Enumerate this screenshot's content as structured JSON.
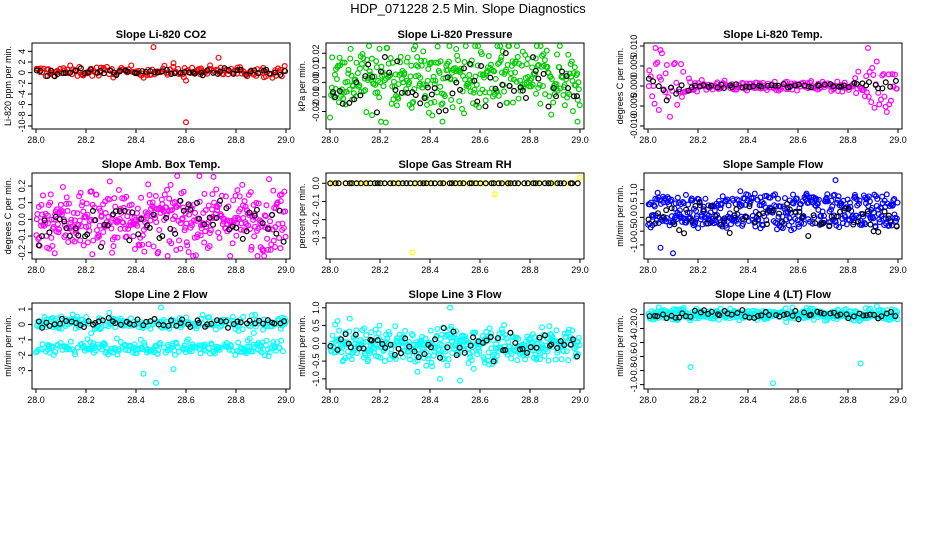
{
  "title": "HDP_071228  2.5 Min. Slope Diagnostics",
  "colors": {
    "black": "#000000",
    "red": "#ff0000",
    "green": "#00cc00",
    "magenta": "#ff00ff",
    "yellow": "#ffff00",
    "blue": "#0000ff",
    "cyan": "#00ffff"
  },
  "chart_data": [
    {
      "type": "scatter",
      "title": "Slope Li-820 CO2",
      "ylabel": "Li-820 ppm per min.",
      "xlim": [
        28.0,
        29.0
      ],
      "xticks": [
        "28.0",
        "28.2",
        "28.4",
        "28.6",
        "28.8",
        "29.0"
      ],
      "ylim": [
        -10,
        5
      ],
      "yticks": [
        "-10",
        "-8",
        "-6",
        "-4",
        "-2",
        "0",
        "2",
        "4"
      ],
      "series": [
        {
          "name": "color points",
          "color": "red",
          "pattern": "band",
          "center": 0.2,
          "spread": 0.5,
          "n": 170,
          "points": [
            [
              28.47,
              4.8
            ],
            [
              28.6,
              -9.3
            ],
            [
              28.55,
              1.8
            ],
            [
              28.73,
              2.8
            ],
            [
              28.6,
              -1.5
            ],
            [
              28.66,
              0.8
            ]
          ]
        },
        {
          "name": "black points",
          "color": "black",
          "pattern": "band",
          "center": 0.1,
          "spread": 0.35,
          "n": 60
        }
      ]
    },
    {
      "type": "scatter",
      "title": "Slope Li-820 Pressure",
      "ylabel": "kPa per min.",
      "xlim": [
        28.0,
        29.0
      ],
      "xticks": [
        "28.0",
        "28.2",
        "28.4",
        "28.6",
        "28.8",
        "29.0"
      ],
      "ylim": [
        -0.03,
        0.025
      ],
      "yticks": [
        "-0.02",
        "-0.01",
        "0.00",
        "0.01",
        "0.02"
      ],
      "series": [
        {
          "name": "color points",
          "color": "green",
          "pattern": "band",
          "center": 0.003,
          "spread": 0.012,
          "n": 380,
          "points": [
            [
              28.45,
              -0.027
            ],
            [
              28.99,
              -0.027
            ]
          ]
        },
        {
          "name": "black points",
          "color": "black",
          "pattern": "band",
          "center": -0.002,
          "spread": 0.01,
          "n": 60
        }
      ]
    },
    {
      "type": "scatter",
      "title": "Slope Li-820 Temp.",
      "ylabel": "degrees C per min.",
      "xlim": [
        28.0,
        29.0
      ],
      "xticks": [
        "28.0",
        "28.2",
        "28.4",
        "28.6",
        "28.8",
        "29.0"
      ],
      "ylim": [
        -0.01,
        0.01
      ],
      "yticks": [
        "-0.010",
        "-0.005",
        "0.000",
        "0.005",
        "0.010"
      ],
      "series": [
        {
          "name": "color points",
          "color": "magenta",
          "pattern": "flared",
          "center": 0.0,
          "spread": 0.004,
          "n": 200,
          "points": [
            [
              28.03,
              0.0095
            ],
            [
              28.05,
              0.009
            ],
            [
              28.88,
              0.0095
            ]
          ]
        },
        {
          "name": "black points",
          "color": "black",
          "pattern": "flared",
          "center": 0.0,
          "spread": 0.002,
          "n": 60
        }
      ]
    },
    {
      "type": "scatter",
      "title": "Slope Amb. Box Temp.",
      "ylabel": "degrees C per min.",
      "xlim": [
        28.0,
        29.0
      ],
      "xticks": [
        "28.0",
        "28.2",
        "28.4",
        "28.6",
        "28.8",
        "29.0"
      ],
      "ylim": [
        -0.22,
        0.26
      ],
      "yticks": [
        "-0.2",
        "-0.1",
        "0.0",
        "0.1",
        "0.2"
      ],
      "series": [
        {
          "name": "color points",
          "color": "magenta",
          "pattern": "band",
          "center": 0.0,
          "spread": 0.1,
          "n": 420
        },
        {
          "name": "black points",
          "color": "black",
          "pattern": "band",
          "center": 0.0,
          "spread": 0.07,
          "n": 60
        }
      ]
    },
    {
      "type": "scatter",
      "title": "Slope Gas Stream RH",
      "ylabel": "percent per min.",
      "xlim": [
        28.0,
        29.0
      ],
      "xticks": [
        "28.0",
        "28.2",
        "28.4",
        "28.6",
        "28.8",
        "29.0"
      ],
      "ylim": [
        -0.4,
        0.04
      ],
      "yticks": [
        "-0.3",
        "-0.2",
        "-0.1",
        "0.0"
      ],
      "series": [
        {
          "name": "color points",
          "color": "yellow",
          "pattern": "flat",
          "center": 0.0,
          "spread": 0.0,
          "n": 60,
          "points": [
            [
              28.33,
              -0.38
            ],
            [
              28.66,
              -0.06
            ],
            [
              29.0,
              0.03
            ],
            [
              28.0,
              0.0
            ]
          ]
        },
        {
          "name": "black points",
          "color": "black",
          "pattern": "flat",
          "center": 0.0,
          "spread": 0.0,
          "n": 60
        }
      ]
    },
    {
      "type": "scatter",
      "title": "Slope Sample Flow",
      "ylabel": "ml/min per min.",
      "xlim": [
        28.0,
        29.0
      ],
      "xticks": [
        "28.0",
        "28.2",
        "28.4",
        "28.6",
        "28.8",
        "29.0"
      ],
      "ylim": [
        -1.4,
        1.5
      ],
      "yticks": [
        "-1.0",
        "-0.5",
        "0.0",
        "0.5",
        "1.0"
      ],
      "series": [
        {
          "name": "color points",
          "color": "blue",
          "pattern": "twoband",
          "center": 0.55,
          "center2": -0.1,
          "spread": 0.17,
          "n": 420,
          "points": [
            [
              28.75,
              1.35
            ],
            [
              28.05,
              -1.1
            ],
            [
              28.1,
              -1.3
            ]
          ]
        },
        {
          "name": "black points",
          "color": "black",
          "pattern": "band",
          "center": 0.0,
          "spread": 0.3,
          "n": 60
        }
      ]
    },
    {
      "type": "scatter",
      "title": "Slope Line 2 Flow",
      "ylabel": "ml/min per min.",
      "xlim": [
        28.0,
        29.0
      ],
      "xticks": [
        "28.0",
        "28.2",
        "28.4",
        "28.6",
        "28.8",
        "29.0"
      ],
      "ylim": [
        -4,
        1.2
      ],
      "yticks": [
        "-3",
        "-2",
        "-1",
        "0",
        "1"
      ],
      "series": [
        {
          "name": "color points",
          "color": "cyan",
          "pattern": "twoband",
          "center": 0.1,
          "center2": -1.5,
          "spread": 0.25,
          "n": 440,
          "points": [
            [
              28.48,
              -3.8
            ],
            [
              28.43,
              -3.2
            ],
            [
              28.5,
              1.1
            ],
            [
              28.55,
              -2.9
            ]
          ]
        },
        {
          "name": "black points",
          "color": "black",
          "pattern": "band",
          "center": 0.1,
          "spread": 0.15,
          "n": 60
        }
      ]
    },
    {
      "type": "scatter",
      "title": "Slope Line 3 Flow",
      "ylabel": "ml/min per min.",
      "xlim": [
        28.0,
        29.0
      ],
      "xticks": [
        "28.0",
        "28.2",
        "28.4",
        "28.6",
        "28.8",
        "29.0"
      ],
      "ylim": [
        -1.2,
        1.05
      ],
      "yticks": [
        "-1.0",
        "-0.5",
        "0.0",
        "0.5",
        "1.0"
      ],
      "series": [
        {
          "name": "color points",
          "color": "cyan",
          "pattern": "band",
          "center": -0.05,
          "spread": 0.25,
          "n": 420,
          "points": [
            [
              28.48,
              1.0
            ],
            [
              28.44,
              -1.0
            ],
            [
              28.35,
              -0.8
            ],
            [
              28.52,
              -1.05
            ]
          ]
        },
        {
          "name": "black points",
          "color": "black",
          "pattern": "band",
          "center": -0.05,
          "spread": 0.2,
          "n": 60
        }
      ]
    },
    {
      "type": "scatter",
      "title": "Slope Line 4 (LT) Flow",
      "ylabel": "ml/min per min.",
      "xlim": [
        28.0,
        29.0
      ],
      "xticks": [
        "28.0",
        "28.2",
        "28.4",
        "28.6",
        "28.8",
        "29.0"
      ],
      "ylim": [
        -1.02,
        0.12
      ],
      "yticks": [
        "-1.0",
        "-0.8",
        "-0.6",
        "-0.4",
        "-0.2",
        "0.0"
      ],
      "series": [
        {
          "name": "color points",
          "color": "cyan",
          "pattern": "band",
          "center": 0.0,
          "spread": 0.04,
          "n": 400,
          "points": [
            [
              28.17,
              -0.75
            ],
            [
              28.5,
              -0.98
            ],
            [
              28.85,
              -0.7
            ]
          ]
        },
        {
          "name": "black points",
          "color": "black",
          "pattern": "band",
          "center": 0.0,
          "spread": 0.035,
          "n": 60
        }
      ]
    }
  ]
}
